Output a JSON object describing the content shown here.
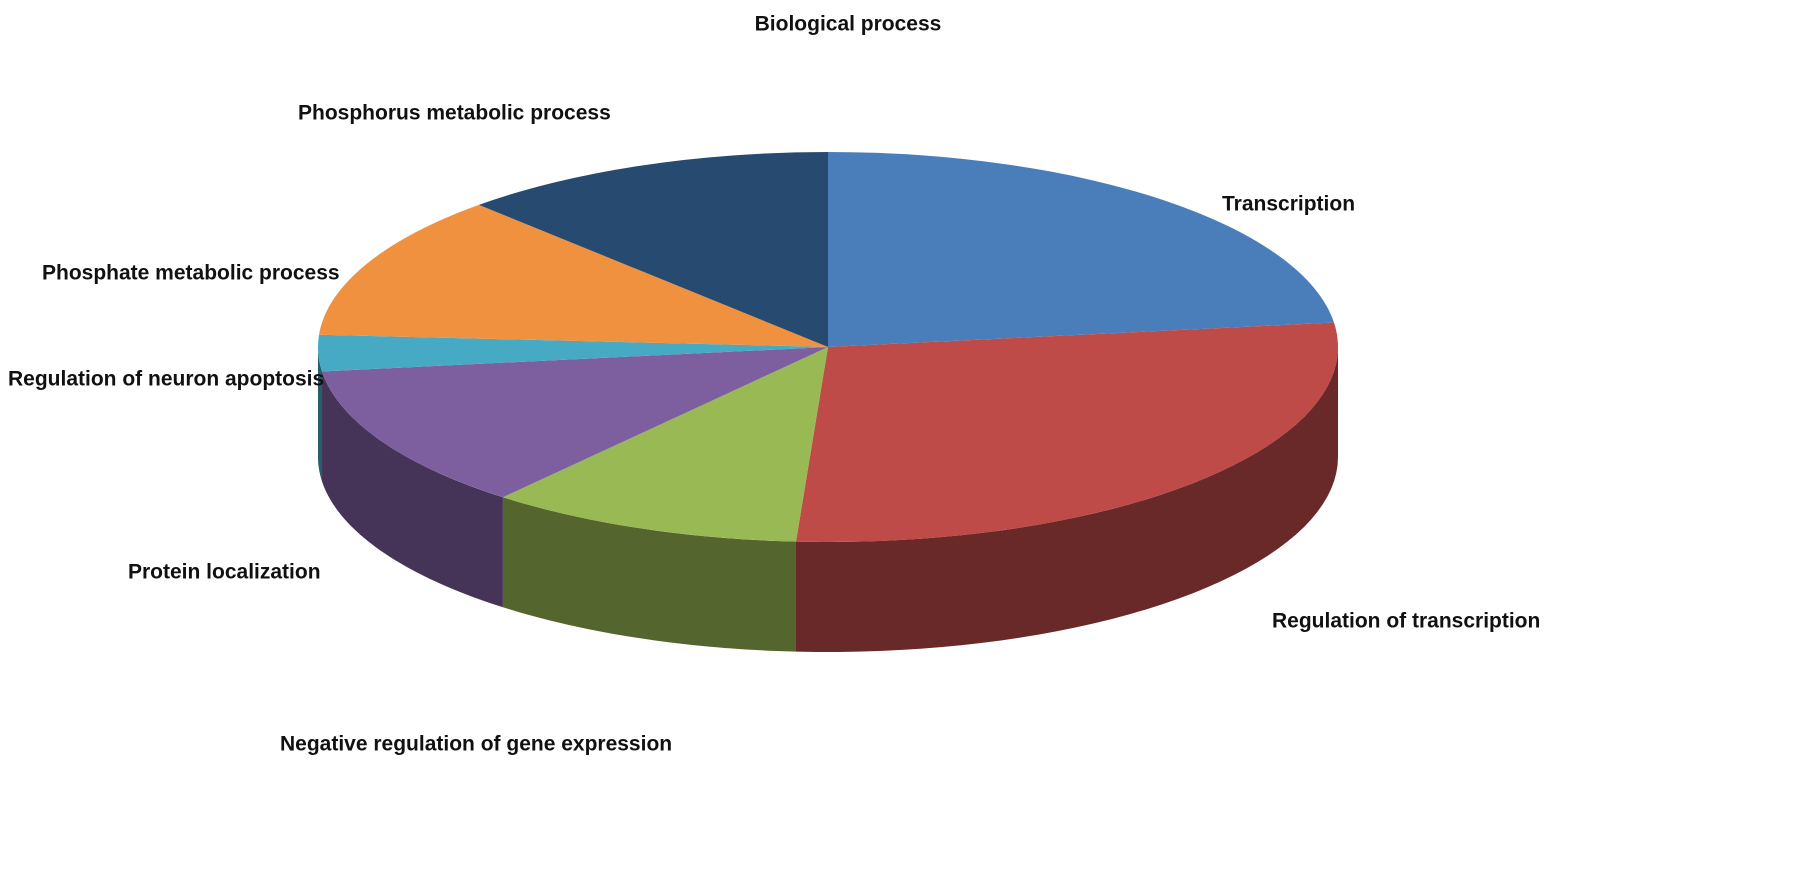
{
  "chart_data": {
    "type": "pie",
    "title": "Biological process",
    "categories": [
      "Transcription",
      "Regulation of transcription",
      "Negative regulation of gene expression",
      "Protein localization",
      "Regulation of neuron apoptosis",
      "Phosphate metabolic process",
      "Phosphorus metabolic process"
    ],
    "values": [
      23,
      28,
      10,
      12,
      3,
      12,
      12
    ],
    "colors": [
      "#4a7ebb",
      "#be4b48",
      "#98b954",
      "#7d5f9f",
      "#46aac5",
      "#f0913f",
      "#274a71"
    ]
  }
}
